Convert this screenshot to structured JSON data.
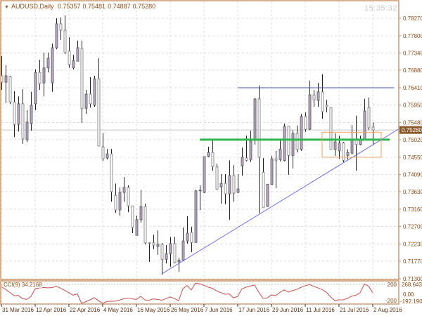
{
  "window": {
    "symbol_label": "AUDUSD,Daily",
    "ohlc": [
      "0.75357",
      "0.75481",
      "0.74887",
      "0.75280"
    ],
    "clock": "15:35:32",
    "menu_icon": "triangle-down-icon"
  },
  "chart_data": {
    "type": "candlestick",
    "title": "AUDUSD,Daily",
    "ylim": [
      0.7128,
      0.7872
    ],
    "grid": true,
    "colors": {
      "bull_fill": "#b8a6c4",
      "bear_fill": "#ffffff",
      "support": "#2eb84a",
      "resistance": "#4a5aa8",
      "trendline": "#6f6fe0",
      "box": "#f4a060",
      "cci": "#c0504d",
      "axis": "#c8956a",
      "price_tag": "#8b5a2b"
    },
    "price_ticks": [
      "0.78270",
      "0.77800",
      "0.77340",
      "0.76880",
      "0.76410",
      "0.75950",
      "0.75480",
      "0.75020",
      "0.74550",
      "0.74090",
      "0.73630",
      "0.73160",
      "0.72700",
      "0.72230",
      "0.71770",
      "0.71300"
    ],
    "current_price": "0.75280",
    "date_ticks": [
      "31 Mar 2016",
      "12 Apr 2016",
      "22 Apr 2016",
      "4 May 2016",
      "16 May 2016",
      "26 May 2016",
      "7 Jun 2016",
      "17 Jun 2016",
      "29 Jun 2016",
      "11 Jul 2016",
      "21 Jul 2016",
      "2 Aug 2016"
    ],
    "date_tick_every_bars": 8,
    "candles_ohlc": [
      [
        0.7673,
        0.7726,
        0.7635,
        0.7656
      ],
      [
        0.7656,
        0.7701,
        0.76,
        0.7673
      ],
      [
        0.7671,
        0.7673,
        0.7598,
        0.7603
      ],
      [
        0.7603,
        0.7632,
        0.7509,
        0.7543
      ],
      [
        0.7543,
        0.7618,
        0.7524,
        0.7598
      ],
      [
        0.7598,
        0.7637,
        0.7491,
        0.7504
      ],
      [
        0.7502,
        0.7581,
        0.7496,
        0.7549
      ],
      [
        0.7545,
        0.763,
        0.7526,
        0.7594
      ],
      [
        0.7598,
        0.769,
        0.7581,
        0.7682
      ],
      [
        0.7682,
        0.7716,
        0.7635,
        0.7652
      ],
      [
        0.7654,
        0.7735,
        0.7618,
        0.7694
      ],
      [
        0.7694,
        0.7735,
        0.7682,
        0.772
      ],
      [
        0.7654,
        0.7759,
        0.763,
        0.7748
      ],
      [
        0.7748,
        0.7827,
        0.7744,
        0.7812
      ],
      [
        0.7812,
        0.7829,
        0.7769,
        0.7795
      ],
      [
        0.7795,
        0.7835,
        0.7731,
        0.7735
      ],
      [
        0.7739,
        0.7776,
        0.7694,
        0.7703
      ],
      [
        0.7694,
        0.7729,
        0.769,
        0.7714
      ],
      [
        0.7712,
        0.7767,
        0.7712,
        0.7748
      ],
      [
        0.7746,
        0.7767,
        0.7547,
        0.7585
      ],
      [
        0.7586,
        0.7635,
        0.7571,
        0.7624
      ],
      [
        0.7624,
        0.7669,
        0.7588,
        0.7598
      ],
      [
        0.7594,
        0.7673,
        0.759,
        0.7665
      ],
      [
        0.7665,
        0.772,
        0.7485,
        0.7485
      ],
      [
        0.7483,
        0.7519,
        0.7445,
        0.7451
      ],
      [
        0.7453,
        0.7477,
        0.7449,
        0.7464
      ],
      [
        0.7464,
        0.7477,
        0.7336,
        0.7363
      ],
      [
        0.7353,
        0.7385,
        0.7306,
        0.7314
      ],
      [
        0.7314,
        0.7374,
        0.7299,
        0.7361
      ],
      [
        0.7361,
        0.7402,
        0.7336,
        0.7374
      ],
      [
        0.7374,
        0.738,
        0.7308,
        0.7325
      ],
      [
        0.7325,
        0.7325,
        0.7252,
        0.7267
      ],
      [
        0.7246,
        0.7299,
        0.7246,
        0.7288
      ],
      [
        0.7288,
        0.7367,
        0.728,
        0.7323
      ],
      [
        0.7323,
        0.7331,
        0.7222,
        0.7226
      ],
      [
        0.7226,
        0.7227,
        0.7175,
        0.7224
      ],
      [
        0.7226,
        0.7248,
        0.7209,
        0.722
      ],
      [
        0.7216,
        0.7259,
        0.7194,
        0.7222
      ],
      [
        0.7222,
        0.7226,
        0.7141,
        0.7182
      ],
      [
        0.7182,
        0.722,
        0.7171,
        0.7197
      ],
      [
        0.7197,
        0.7242,
        0.7162,
        0.7224
      ],
      [
        0.7224,
        0.7242,
        0.7171,
        0.7173
      ],
      [
        0.7175,
        0.7186,
        0.7148,
        0.718
      ],
      [
        0.718,
        0.7267,
        0.7177,
        0.7231
      ],
      [
        0.7231,
        0.7297,
        0.7224,
        0.7252
      ],
      [
        0.7254,
        0.7269,
        0.7201,
        0.7227
      ],
      [
        0.7227,
        0.7368,
        0.7227,
        0.7365
      ],
      [
        0.7365,
        0.738,
        0.7314,
        0.7367
      ],
      [
        0.7361,
        0.7457,
        0.7359,
        0.7457
      ],
      [
        0.7457,
        0.7483,
        0.7455,
        0.7468
      ],
      [
        0.7468,
        0.7502,
        0.7419,
        0.743
      ],
      [
        0.7429,
        0.7438,
        0.7368,
        0.737
      ],
      [
        0.7376,
        0.741,
        0.7331,
        0.7385
      ],
      [
        0.7385,
        0.741,
        0.7329,
        0.7357
      ],
      [
        0.7357,
        0.7447,
        0.7288,
        0.7406
      ],
      [
        0.7406,
        0.7434,
        0.7336,
        0.7359
      ],
      [
        0.7361,
        0.741,
        0.7359,
        0.737
      ],
      [
        0.7432,
        0.7481,
        0.7406,
        0.7455
      ],
      [
        0.7453,
        0.7513,
        0.7444,
        0.7447
      ],
      [
        0.7449,
        0.7526,
        0.7442,
        0.7498
      ],
      [
        0.75,
        0.7613,
        0.7489,
        0.7611
      ],
      [
        0.7611,
        0.7647,
        0.7305,
        0.7455
      ],
      [
        0.7415,
        0.7453,
        0.7321,
        0.7321
      ],
      [
        0.7323,
        0.7383,
        0.7323,
        0.7383
      ],
      [
        0.7382,
        0.7459,
        0.7382,
        0.7451
      ],
      [
        0.7451,
        0.7472,
        0.7372,
        0.7447
      ],
      [
        0.7449,
        0.7504,
        0.7444,
        0.7477
      ],
      [
        0.7446,
        0.7545,
        0.7444,
        0.7538
      ],
      [
        0.7538,
        0.7538,
        0.7408,
        0.746
      ],
      [
        0.746,
        0.7528,
        0.7425,
        0.7519
      ],
      [
        0.7519,
        0.754,
        0.7468,
        0.7476
      ],
      [
        0.7476,
        0.7571,
        0.7472,
        0.7564
      ],
      [
        0.7564,
        0.7575,
        0.7523,
        0.753
      ],
      [
        0.753,
        0.766,
        0.7528,
        0.7622
      ],
      [
        0.7622,
        0.7635,
        0.759,
        0.7609
      ],
      [
        0.7607,
        0.7654,
        0.759,
        0.763
      ],
      [
        0.763,
        0.7677,
        0.7558,
        0.7577
      ],
      [
        0.7594,
        0.7609,
        0.7575,
        0.759
      ],
      [
        0.7588,
        0.7588,
        0.7476,
        0.7476
      ],
      [
        0.7476,
        0.7519,
        0.7459,
        0.7496
      ],
      [
        0.7472,
        0.7513,
        0.7451,
        0.7493
      ],
      [
        0.7493,
        0.7496,
        0.7442,
        0.7447
      ],
      [
        0.746,
        0.7476,
        0.7449,
        0.7468
      ],
      [
        0.7466,
        0.7541,
        0.7462,
        0.7502
      ],
      [
        0.7502,
        0.7566,
        0.7419,
        0.7489
      ],
      [
        0.7489,
        0.7513,
        0.7487,
        0.7502
      ],
      [
        0.7502,
        0.7611,
        0.75,
        0.7579
      ],
      [
        0.7588,
        0.7615,
        0.7528,
        0.7534
      ],
      [
        0.75357,
        0.75481,
        0.74887,
        0.7528
      ]
    ],
    "objects": {
      "resistance_line": {
        "price": 0.7641,
        "from_bar": 57,
        "to_bar": 94
      },
      "support_line": {
        "price": 0.7502,
        "from_bar": 48,
        "to_bar": 93
      },
      "trendline": {
        "from": [
          39,
          0.7143
        ],
        "to": [
          95.2,
          0.7531
        ]
      },
      "rectangle": {
        "from_bar": 77,
        "to_bar": 91,
        "top": 0.7522,
        "bottom": 0.7455
      }
    },
    "indicator": {
      "name": "CCI(9)",
      "value": "34.2168",
      "max_label": "268.6439",
      "min_label": "-192.1907",
      "range": [
        -192.1907,
        268.6439
      ],
      "level_labels": [
        "200",
        "0.00",
        "-200"
      ],
      "levels": [
        200,
        0,
        -200
      ],
      "values": [
        150,
        100,
        40,
        -28,
        -20,
        -84,
        -100,
        -40,
        110,
        130,
        136,
        130,
        135,
        164,
        125,
        80,
        32,
        -15,
        10,
        -178,
        -145,
        -110,
        -65,
        -125,
        -180,
        -140,
        -135,
        -135,
        -112,
        -86,
        -72,
        -90,
        -100,
        -38,
        -110,
        -115,
        -90,
        -100,
        -116,
        -85,
        -50,
        -80,
        -125,
        112,
        175,
        90,
        225,
        210,
        180,
        145,
        120,
        70,
        35,
        5,
        8,
        -70,
        -38,
        110,
        145,
        168,
        186,
        40,
        -80,
        -68,
        -10,
        -24,
        40,
        90,
        46,
        75,
        100,
        140,
        170,
        196,
        160,
        130,
        95,
        45,
        -50,
        -120,
        -108,
        -108,
        -80,
        -35,
        -16,
        32,
        206,
        165,
        34.2168
      ]
    }
  }
}
